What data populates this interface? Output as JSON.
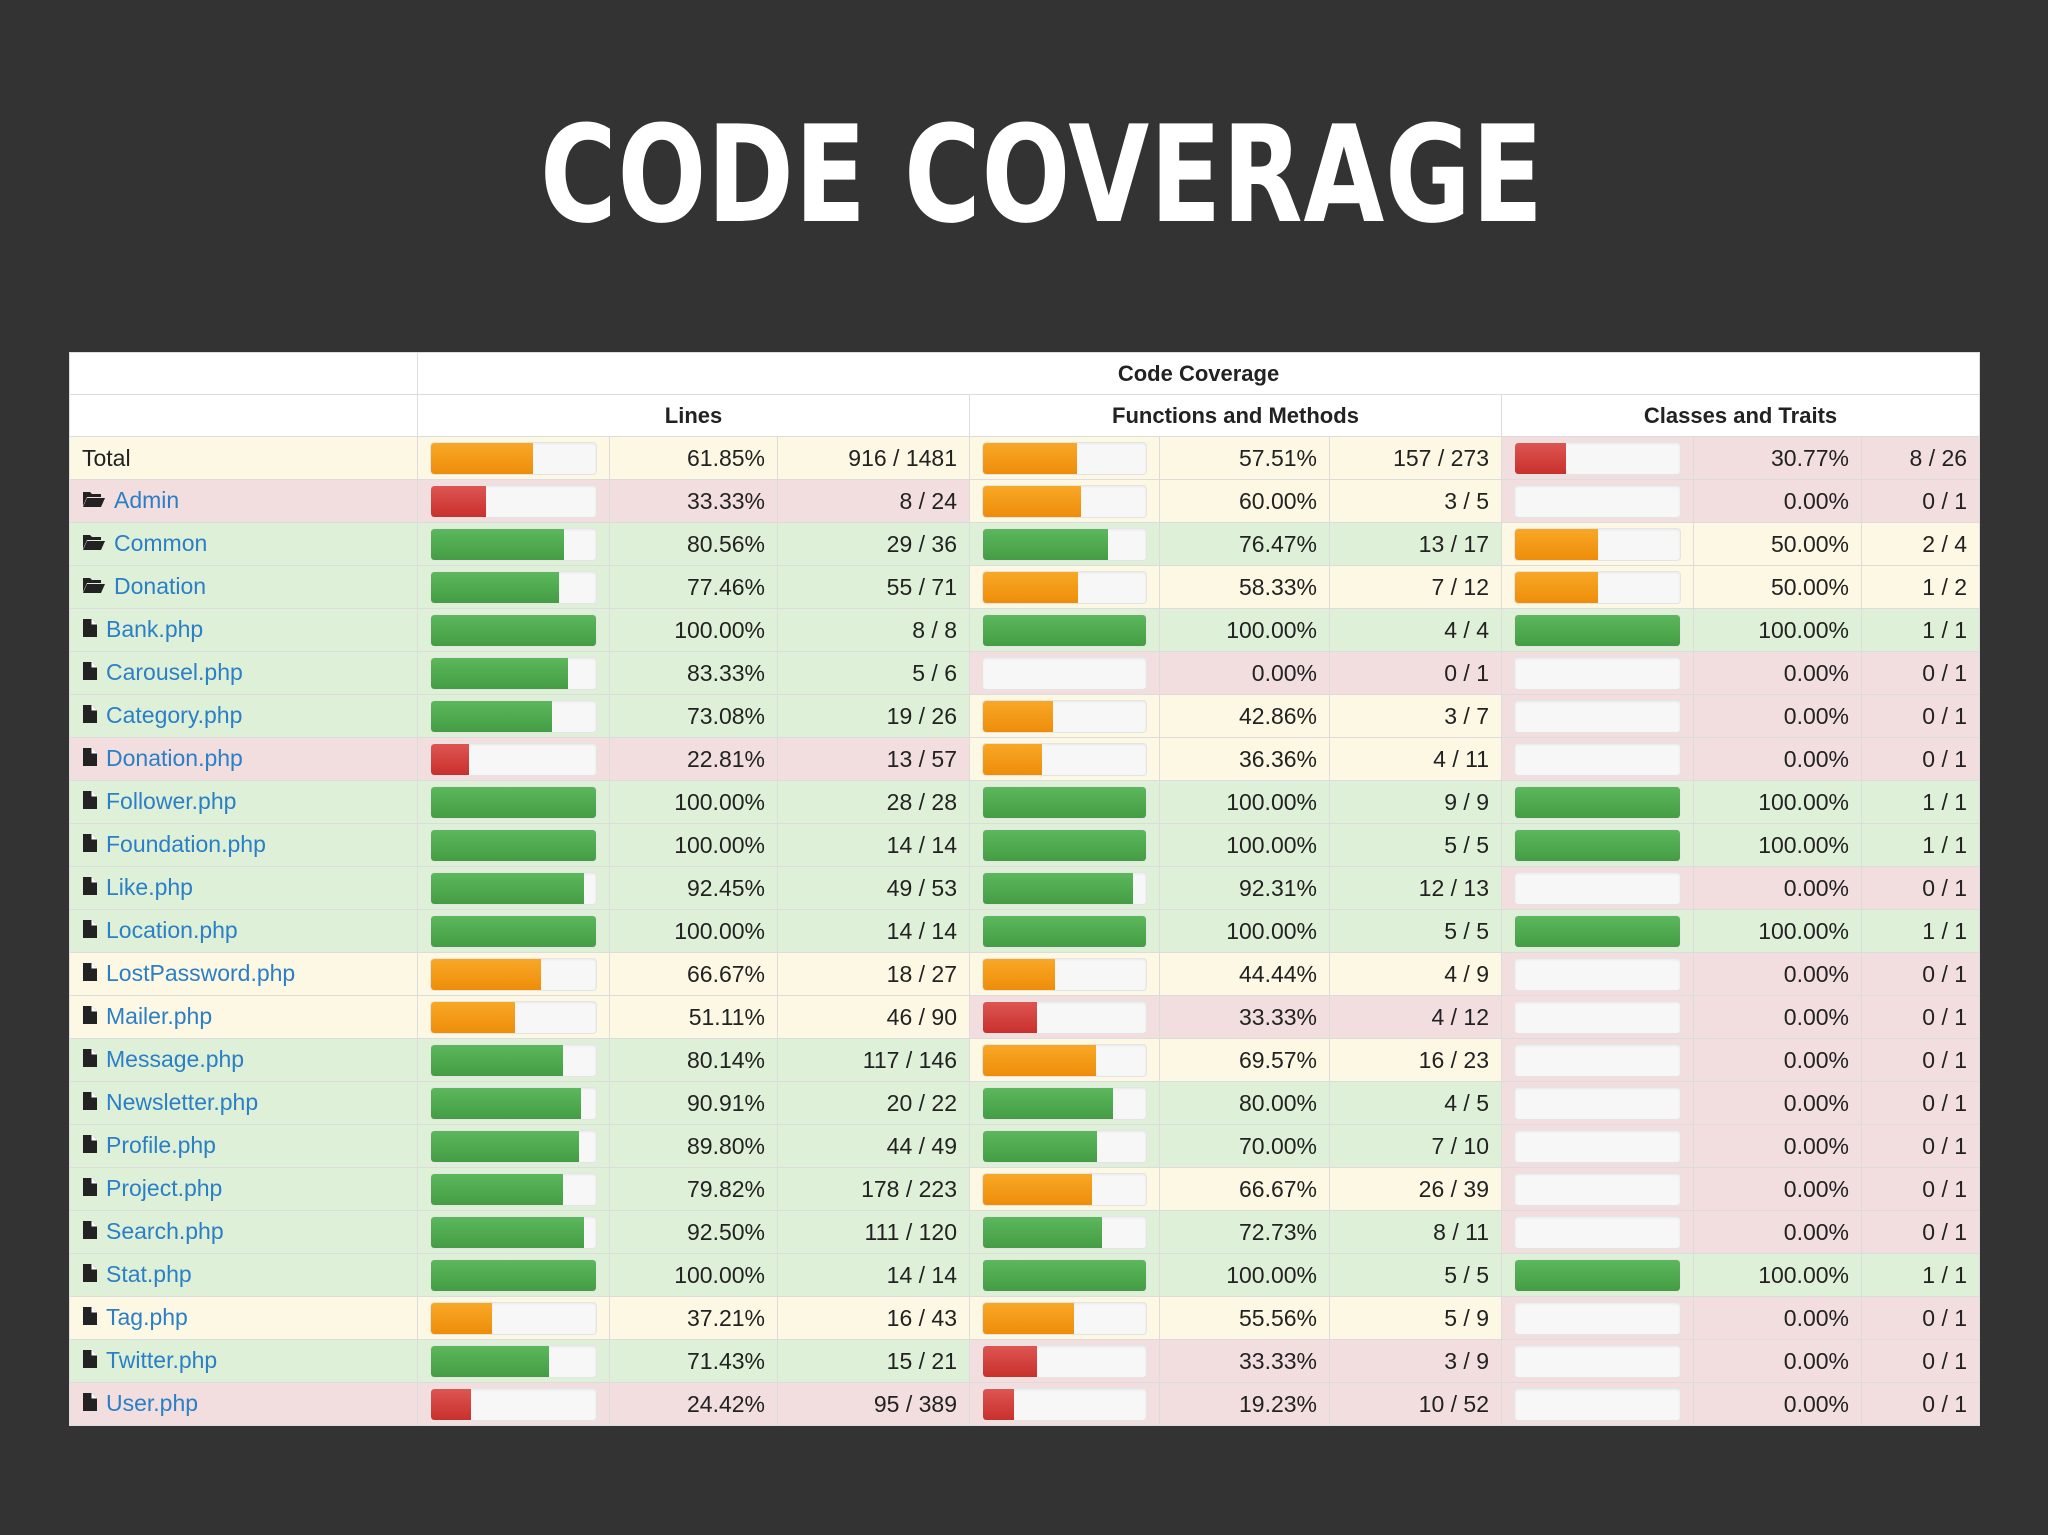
{
  "slide": {
    "title": "CODE COVERAGE"
  },
  "table": {
    "header": {
      "group": "Code Coverage",
      "lines": "Lines",
      "functions": "Functions and Methods",
      "classes": "Classes and Traits"
    },
    "colors": {
      "success": "#5cb85c",
      "warning": "#f0ad4e",
      "danger": "#d9534f",
      "link": "#2a7fc6"
    },
    "rows": [
      {
        "name": "Total",
        "icon": "none",
        "lines": {
          "pct": "61.85%",
          "ratio": "916 / 1481",
          "fill": 61.85,
          "level": "warning"
        },
        "functions": {
          "pct": "57.51%",
          "ratio": "157 / 273",
          "fill": 57.51,
          "level": "warning"
        },
        "classes": {
          "pct": "30.77%",
          "ratio": "8 / 26",
          "fill": 30.77,
          "level": "danger"
        }
      },
      {
        "name": "Admin",
        "icon": "folder-icon",
        "lines": {
          "pct": "33.33%",
          "ratio": "8 / 24",
          "fill": 33.33,
          "level": "danger"
        },
        "functions": {
          "pct": "60.00%",
          "ratio": "3 / 5",
          "fill": 60.0,
          "level": "warning"
        },
        "classes": {
          "pct": "0.00%",
          "ratio": "0 / 1",
          "fill": 0,
          "level": "danger"
        }
      },
      {
        "name": "Common",
        "icon": "folder-icon",
        "lines": {
          "pct": "80.56%",
          "ratio": "29 / 36",
          "fill": 80.56,
          "level": "success"
        },
        "functions": {
          "pct": "76.47%",
          "ratio": "13 / 17",
          "fill": 76.47,
          "level": "success"
        },
        "classes": {
          "pct": "50.00%",
          "ratio": "2 / 4",
          "fill": 50.0,
          "level": "warning"
        }
      },
      {
        "name": "Donation",
        "icon": "folder-icon",
        "lines": {
          "pct": "77.46%",
          "ratio": "55 / 71",
          "fill": 77.46,
          "level": "success"
        },
        "functions": {
          "pct": "58.33%",
          "ratio": "7 / 12",
          "fill": 58.33,
          "level": "warning"
        },
        "classes": {
          "pct": "50.00%",
          "ratio": "1 / 2",
          "fill": 50.0,
          "level": "warning"
        }
      },
      {
        "name": "Bank.php",
        "icon": "file-icon",
        "lines": {
          "pct": "100.00%",
          "ratio": "8 / 8",
          "fill": 100,
          "level": "success"
        },
        "functions": {
          "pct": "100.00%",
          "ratio": "4 / 4",
          "fill": 100,
          "level": "success"
        },
        "classes": {
          "pct": "100.00%",
          "ratio": "1 / 1",
          "fill": 100,
          "level": "success"
        }
      },
      {
        "name": "Carousel.php",
        "icon": "file-icon",
        "lines": {
          "pct": "83.33%",
          "ratio": "5 / 6",
          "fill": 83.33,
          "level": "success"
        },
        "functions": {
          "pct": "0.00%",
          "ratio": "0 / 1",
          "fill": 0,
          "level": "danger"
        },
        "classes": {
          "pct": "0.00%",
          "ratio": "0 / 1",
          "fill": 0,
          "level": "danger"
        }
      },
      {
        "name": "Category.php",
        "icon": "file-icon",
        "lines": {
          "pct": "73.08%",
          "ratio": "19 / 26",
          "fill": 73.08,
          "level": "success"
        },
        "functions": {
          "pct": "42.86%",
          "ratio": "3 / 7",
          "fill": 42.86,
          "level": "warning"
        },
        "classes": {
          "pct": "0.00%",
          "ratio": "0 / 1",
          "fill": 0,
          "level": "danger"
        }
      },
      {
        "name": "Donation.php",
        "icon": "file-icon",
        "lines": {
          "pct": "22.81%",
          "ratio": "13 / 57",
          "fill": 22.81,
          "level": "danger"
        },
        "functions": {
          "pct": "36.36%",
          "ratio": "4 / 11",
          "fill": 36.36,
          "level": "warning"
        },
        "classes": {
          "pct": "0.00%",
          "ratio": "0 / 1",
          "fill": 0,
          "level": "danger"
        }
      },
      {
        "name": "Follower.php",
        "icon": "file-icon",
        "lines": {
          "pct": "100.00%",
          "ratio": "28 / 28",
          "fill": 100,
          "level": "success"
        },
        "functions": {
          "pct": "100.00%",
          "ratio": "9 / 9",
          "fill": 100,
          "level": "success"
        },
        "classes": {
          "pct": "100.00%",
          "ratio": "1 / 1",
          "fill": 100,
          "level": "success"
        }
      },
      {
        "name": "Foundation.php",
        "icon": "file-icon",
        "lines": {
          "pct": "100.00%",
          "ratio": "14 / 14",
          "fill": 100,
          "level": "success"
        },
        "functions": {
          "pct": "100.00%",
          "ratio": "5 / 5",
          "fill": 100,
          "level": "success"
        },
        "classes": {
          "pct": "100.00%",
          "ratio": "1 / 1",
          "fill": 100,
          "level": "success"
        }
      },
      {
        "name": "Like.php",
        "icon": "file-icon",
        "lines": {
          "pct": "92.45%",
          "ratio": "49 / 53",
          "fill": 92.45,
          "level": "success"
        },
        "functions": {
          "pct": "92.31%",
          "ratio": "12 / 13",
          "fill": 92.31,
          "level": "success"
        },
        "classes": {
          "pct": "0.00%",
          "ratio": "0 / 1",
          "fill": 0,
          "level": "danger"
        }
      },
      {
        "name": "Location.php",
        "icon": "file-icon",
        "lines": {
          "pct": "100.00%",
          "ratio": "14 / 14",
          "fill": 100,
          "level": "success"
        },
        "functions": {
          "pct": "100.00%",
          "ratio": "5 / 5",
          "fill": 100,
          "level": "success"
        },
        "classes": {
          "pct": "100.00%",
          "ratio": "1 / 1",
          "fill": 100,
          "level": "success"
        }
      },
      {
        "name": "LostPassword.php",
        "icon": "file-icon",
        "lines": {
          "pct": "66.67%",
          "ratio": "18 / 27",
          "fill": 66.67,
          "level": "warning"
        },
        "functions": {
          "pct": "44.44%",
          "ratio": "4 / 9",
          "fill": 44.44,
          "level": "warning"
        },
        "classes": {
          "pct": "0.00%",
          "ratio": "0 / 1",
          "fill": 0,
          "level": "danger"
        }
      },
      {
        "name": "Mailer.php",
        "icon": "file-icon",
        "lines": {
          "pct": "51.11%",
          "ratio": "46 / 90",
          "fill": 51.11,
          "level": "warning"
        },
        "functions": {
          "pct": "33.33%",
          "ratio": "4 / 12",
          "fill": 33.33,
          "level": "danger"
        },
        "classes": {
          "pct": "0.00%",
          "ratio": "0 / 1",
          "fill": 0,
          "level": "danger"
        }
      },
      {
        "name": "Message.php",
        "icon": "file-icon",
        "lines": {
          "pct": "80.14%",
          "ratio": "117 / 146",
          "fill": 80.14,
          "level": "success"
        },
        "functions": {
          "pct": "69.57%",
          "ratio": "16 / 23",
          "fill": 69.57,
          "level": "warning"
        },
        "classes": {
          "pct": "0.00%",
          "ratio": "0 / 1",
          "fill": 0,
          "level": "danger"
        }
      },
      {
        "name": "Newsletter.php",
        "icon": "file-icon",
        "lines": {
          "pct": "90.91%",
          "ratio": "20 / 22",
          "fill": 90.91,
          "level": "success"
        },
        "functions": {
          "pct": "80.00%",
          "ratio": "4 / 5",
          "fill": 80.0,
          "level": "success"
        },
        "classes": {
          "pct": "0.00%",
          "ratio": "0 / 1",
          "fill": 0,
          "level": "danger"
        }
      },
      {
        "name": "Profile.php",
        "icon": "file-icon",
        "lines": {
          "pct": "89.80%",
          "ratio": "44 / 49",
          "fill": 89.8,
          "level": "success"
        },
        "functions": {
          "pct": "70.00%",
          "ratio": "7 / 10",
          "fill": 70.0,
          "level": "success"
        },
        "classes": {
          "pct": "0.00%",
          "ratio": "0 / 1",
          "fill": 0,
          "level": "danger"
        }
      },
      {
        "name": "Project.php",
        "icon": "file-icon",
        "lines": {
          "pct": "79.82%",
          "ratio": "178 / 223",
          "fill": 79.82,
          "level": "success"
        },
        "functions": {
          "pct": "66.67%",
          "ratio": "26 / 39",
          "fill": 66.67,
          "level": "warning"
        },
        "classes": {
          "pct": "0.00%",
          "ratio": "0 / 1",
          "fill": 0,
          "level": "danger"
        }
      },
      {
        "name": "Search.php",
        "icon": "file-icon",
        "lines": {
          "pct": "92.50%",
          "ratio": "111 / 120",
          "fill": 92.5,
          "level": "success"
        },
        "functions": {
          "pct": "72.73%",
          "ratio": "8 / 11",
          "fill": 72.73,
          "level": "success"
        },
        "classes": {
          "pct": "0.00%",
          "ratio": "0 / 1",
          "fill": 0,
          "level": "danger"
        }
      },
      {
        "name": "Stat.php",
        "icon": "file-icon",
        "lines": {
          "pct": "100.00%",
          "ratio": "14 / 14",
          "fill": 100,
          "level": "success"
        },
        "functions": {
          "pct": "100.00%",
          "ratio": "5 / 5",
          "fill": 100,
          "level": "success"
        },
        "classes": {
          "pct": "100.00%",
          "ratio": "1 / 1",
          "fill": 100,
          "level": "success"
        }
      },
      {
        "name": "Tag.php",
        "icon": "file-icon",
        "lines": {
          "pct": "37.21%",
          "ratio": "16 / 43",
          "fill": 37.21,
          "level": "warning"
        },
        "functions": {
          "pct": "55.56%",
          "ratio": "5 / 9",
          "fill": 55.56,
          "level": "warning"
        },
        "classes": {
          "pct": "0.00%",
          "ratio": "0 / 1",
          "fill": 0,
          "level": "danger"
        }
      },
      {
        "name": "Twitter.php",
        "icon": "file-icon",
        "lines": {
          "pct": "71.43%",
          "ratio": "15 / 21",
          "fill": 71.43,
          "level": "success"
        },
        "functions": {
          "pct": "33.33%",
          "ratio": "3 / 9",
          "fill": 33.33,
          "level": "danger"
        },
        "classes": {
          "pct": "0.00%",
          "ratio": "0 / 1",
          "fill": 0,
          "level": "danger"
        }
      },
      {
        "name": "User.php",
        "icon": "file-icon",
        "lines": {
          "pct": "24.42%",
          "ratio": "95 / 389",
          "fill": 24.42,
          "level": "danger"
        },
        "functions": {
          "pct": "19.23%",
          "ratio": "10 / 52",
          "fill": 19.23,
          "level": "danger"
        },
        "classes": {
          "pct": "0.00%",
          "ratio": "0 / 1",
          "fill": 0,
          "level": "danger"
        }
      }
    ]
  }
}
